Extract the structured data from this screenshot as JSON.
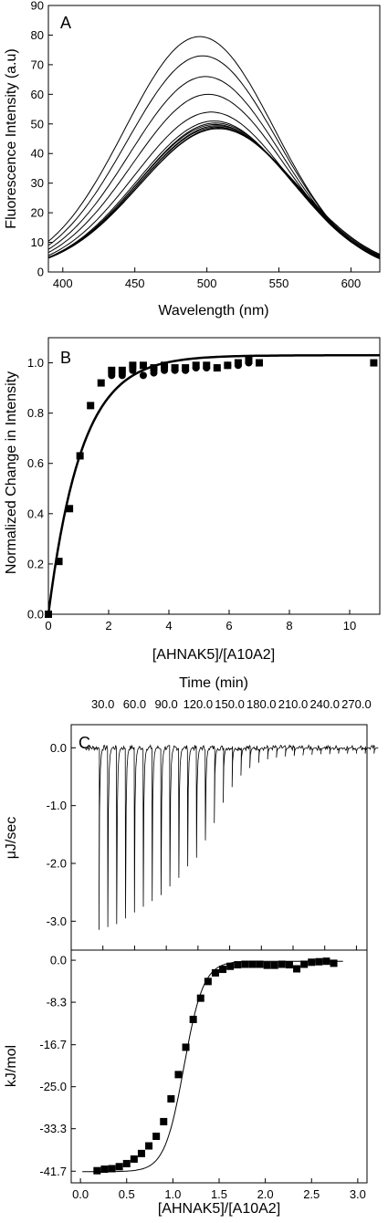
{
  "chart_data": [
    {
      "type": "line",
      "panel_label": "A",
      "xlabel": "Wavelength (nm)",
      "ylabel": "Fluorescence Intensity (a.u)",
      "xlim": [
        390,
        620
      ],
      "ylim": [
        0,
        90
      ],
      "xticks": [
        "400",
        "450",
        "500",
        "550",
        "600"
      ],
      "yticks": [
        "0",
        "10",
        "20",
        "30",
        "40",
        "50",
        "60",
        "70",
        "80",
        "90"
      ],
      "series": [
        {
          "peak": 79.5,
          "peak_wavelength": 495
        },
        {
          "peak": 73.0,
          "peak_wavelength": 497
        },
        {
          "peak": 66.0,
          "peak_wavelength": 499
        },
        {
          "peak": 60.0,
          "peak_wavelength": 501
        },
        {
          "peak": 54.0,
          "peak_wavelength": 503
        },
        {
          "peak": 51.0,
          "peak_wavelength": 505
        },
        {
          "peak": 50.3,
          "peak_wavelength": 506
        },
        {
          "peak": 49.8,
          "peak_wavelength": 506
        },
        {
          "peak": 49.4,
          "peak_wavelength": 507
        },
        {
          "peak": 49.0,
          "peak_wavelength": 507
        },
        {
          "peak": 48.7,
          "peak_wavelength": 508
        },
        {
          "peak": 48.4,
          "peak_wavelength": 508
        }
      ]
    },
    {
      "type": "scatter",
      "panel_label": "B",
      "xlabel": "[AHNAK5]/[A10A2]",
      "ylabel": "Normalized Change in Intensity",
      "xlim": [
        0,
        11
      ],
      "ylim": [
        0,
        1.1
      ],
      "xticks": [
        "0",
        "2",
        "4",
        "6",
        "8",
        "10"
      ],
      "yticks": [
        "0.0",
        "0.2",
        "0.4",
        "0.6",
        "0.8",
        "1.0"
      ],
      "series": [
        {
          "marker": "square",
          "points": [
            [
              0.0,
              0.0
            ],
            [
              0.35,
              0.21
            ],
            [
              0.7,
              0.42
            ],
            [
              1.05,
              0.63
            ],
            [
              1.4,
              0.83
            ],
            [
              1.75,
              0.92
            ],
            [
              2.1,
              0.97
            ],
            [
              2.45,
              0.97
            ],
            [
              2.8,
              0.99
            ],
            [
              3.15,
              0.99
            ],
            [
              3.5,
              0.98
            ],
            [
              3.85,
              0.99
            ],
            [
              4.2,
              0.98
            ],
            [
              4.55,
              0.98
            ],
            [
              4.9,
              0.99
            ],
            [
              5.25,
              0.99
            ],
            [
              5.6,
              0.98
            ],
            [
              5.95,
              0.99
            ],
            [
              6.3,
              1.0
            ],
            [
              6.65,
              1.01
            ],
            [
              7.0,
              1.0
            ],
            [
              10.8,
              1.0
            ]
          ]
        },
        {
          "marker": "circle",
          "points": [
            [
              2.1,
              0.95
            ],
            [
              2.45,
              0.95
            ],
            [
              2.8,
              0.97
            ],
            [
              3.15,
              0.95
            ],
            [
              3.5,
              0.96
            ],
            [
              3.85,
              0.97
            ],
            [
              4.2,
              0.97
            ],
            [
              4.55,
              0.97
            ],
            [
              4.9,
              0.98
            ],
            [
              5.25,
              0.98
            ],
            [
              5.6,
              0.98
            ],
            [
              5.95,
              0.99
            ],
            [
              6.3,
              0.99
            ],
            [
              6.65,
              1.0
            ],
            [
              7.0,
              1.0
            ]
          ]
        },
        {
          "marker": "line",
          "fit": {
            "a": 1.03,
            "k": 0.91
          }
        }
      ]
    },
    {
      "type": "line",
      "panel_label": "C",
      "xlabel": "Time (min)",
      "ylabel": "μJ/sec",
      "xlim": [
        0,
        280
      ],
      "ylim": [
        -3.5,
        0.4
      ],
      "xticks": [
        "30.0",
        "60.0",
        "90.0",
        "120.0",
        "150.0",
        "180.0",
        "210.0",
        "240.0",
        "270.0"
      ],
      "yticks": [
        "0.0",
        "-1.0",
        "-2.0",
        "-3.0"
      ],
      "injections": {
        "first_time": 26,
        "interval": 8.4,
        "baseline_end": 290
      },
      "peaks": [
        -3.15,
        -3.1,
        -3.05,
        -2.95,
        -2.85,
        -2.75,
        -2.65,
        -2.55,
        -2.4,
        -2.25,
        -2.05,
        -1.9,
        -1.6,
        -1.3,
        -0.95,
        -0.68,
        -0.48,
        -0.35,
        -0.26,
        -0.2,
        -0.17,
        -0.15,
        -0.14,
        -0.13,
        -0.12,
        -0.11,
        -0.11,
        -0.1,
        -0.1,
        -0.1,
        -0.1,
        -0.1
      ]
    },
    {
      "type": "scatter",
      "xlabel": "[AHNAK5]/[A10A2]",
      "ylabel": "kJ/mol",
      "xlim": [
        -0.1,
        3.1
      ],
      "ylim": [
        -44,
        2
      ],
      "xticks": [
        "0.0",
        "0.5",
        "1.0",
        "1.5",
        "2.0",
        "2.5",
        "3.0"
      ],
      "yticks": [
        "0.0",
        "-8.3",
        "-16.7",
        "-25.0",
        "-33.3",
        "-41.7"
      ],
      "series": [
        {
          "marker": "square",
          "points": [
            [
              0.18,
              -41.6
            ],
            [
              0.26,
              -41.3
            ],
            [
              0.34,
              -41.2
            ],
            [
              0.42,
              -40.8
            ],
            [
              0.5,
              -40.2
            ],
            [
              0.58,
              -39.3
            ],
            [
              0.66,
              -38.2
            ],
            [
              0.74,
              -36.7
            ],
            [
              0.82,
              -34.8
            ],
            [
              0.9,
              -31.9
            ],
            [
              0.98,
              -27.4
            ],
            [
              1.06,
              -22.6
            ],
            [
              1.14,
              -17.2
            ],
            [
              1.22,
              -11.7
            ],
            [
              1.3,
              -7.5
            ],
            [
              1.38,
              -4.2
            ],
            [
              1.46,
              -2.5
            ],
            [
              1.54,
              -1.8
            ],
            [
              1.62,
              -1.2
            ],
            [
              1.7,
              -0.9
            ],
            [
              1.78,
              -0.8
            ],
            [
              1.86,
              -0.8
            ],
            [
              1.94,
              -0.8
            ],
            [
              2.02,
              -1.0
            ],
            [
              2.1,
              -1.0
            ],
            [
              2.18,
              -0.8
            ],
            [
              2.26,
              -0.9
            ],
            [
              2.34,
              -1.7
            ],
            [
              2.42,
              -0.8
            ],
            [
              2.5,
              -0.4
            ],
            [
              2.58,
              -0.3
            ],
            [
              2.66,
              -0.2
            ],
            [
              2.74,
              -0.6
            ]
          ]
        },
        {
          "marker": "line",
          "fit": {
            "lower": -41.8,
            "upper": -0.2,
            "midpoint": 1.12,
            "slope": 0.105,
            "x_start": 0.02,
            "x_end": 2.85
          }
        }
      ]
    }
  ]
}
